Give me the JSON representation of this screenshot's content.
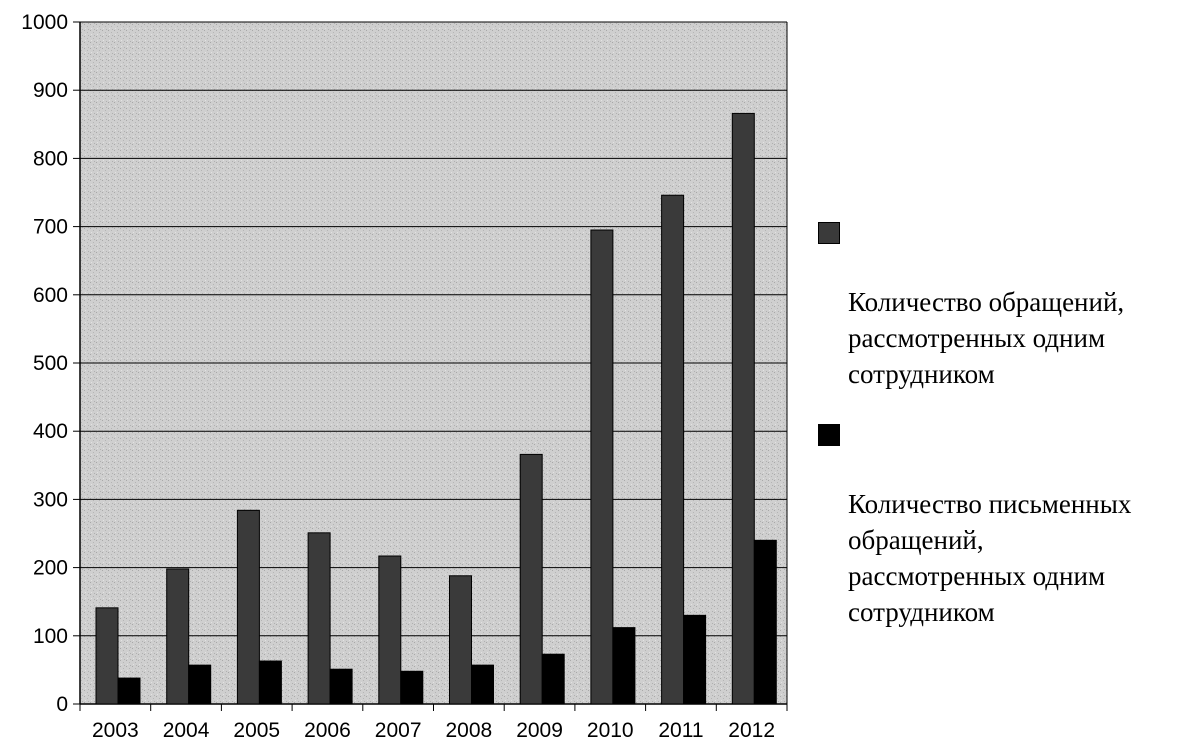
{
  "chart_data": {
    "type": "bar",
    "title": "",
    "xlabel": "",
    "ylabel": "",
    "categories": [
      "2003",
      "2004",
      "2005",
      "2006",
      "2007",
      "2008",
      "2009",
      "2010",
      "2011",
      "2012"
    ],
    "ylim": [
      0,
      1000
    ],
    "yticks": [
      "0",
      "100",
      "200",
      "300",
      "400",
      "500",
      "600",
      "700",
      "800",
      "900",
      "1000"
    ],
    "grid": true,
    "legend_position": "right",
    "series": [
      {
        "name": "Количество обращений, рассмотренных одним сотрудником",
        "color": "#3a3a3a",
        "values": [
          141,
          198,
          284,
          251,
          217,
          188,
          366,
          695,
          746,
          866
        ]
      },
      {
        "name": "Количество письменных обращений, рассмотренных одним сотрудником",
        "color": "#000000",
        "values": [
          38,
          57,
          63,
          51,
          48,
          57,
          73,
          112,
          130,
          240
        ]
      }
    ],
    "plot_background": "#c8c8c8"
  },
  "legend": {
    "items": [
      {
        "label": "Количество обращений,\nрассмотренных одним\nсотрудником"
      },
      {
        "label": "Количество письменных\nобращений,\nрассмотренных одним\nсотрудником"
      }
    ]
  }
}
